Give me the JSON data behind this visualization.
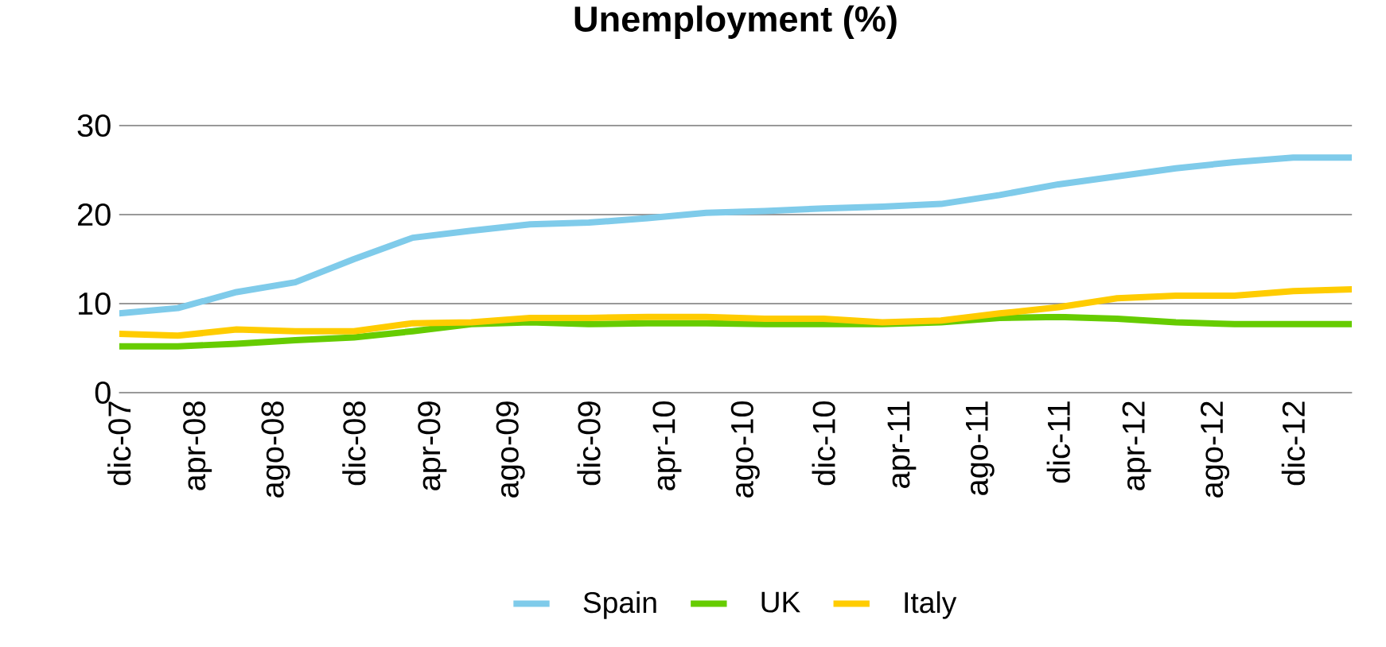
{
  "chart_data": {
    "type": "line",
    "title": "Unemployment (%)",
    "x": [
      "2007-12",
      "2008-03",
      "2008-06",
      "2008-09",
      "2008-12",
      "2009-03",
      "2009-06",
      "2009-09",
      "2009-12",
      "2010-03",
      "2010-06",
      "2010-09",
      "2010-12",
      "2011-03",
      "2011-06",
      "2011-09",
      "2011-12",
      "2012-03",
      "2012-06",
      "2012-09",
      "2012-12",
      "2013-03"
    ],
    "series": [
      {
        "name": "Spain",
        "color": "#7fcbea",
        "values": [
          8.9,
          9.5,
          11.3,
          12.4,
          15.0,
          17.4,
          18.2,
          18.9,
          19.1,
          19.6,
          20.2,
          20.4,
          20.7,
          20.9,
          21.2,
          22.2,
          23.4,
          24.3,
          25.2,
          25.9,
          26.4,
          26.4
        ]
      },
      {
        "name": "UK",
        "color": "#66cc00",
        "values": [
          5.2,
          5.2,
          5.5,
          5.9,
          6.2,
          6.9,
          7.7,
          7.9,
          7.7,
          7.8,
          7.8,
          7.7,
          7.7,
          7.7,
          7.9,
          8.4,
          8.5,
          8.3,
          7.9,
          7.7,
          7.7,
          7.7
        ]
      },
      {
        "name": "Italy",
        "color": "#ffcc00",
        "values": [
          6.6,
          6.4,
          7.1,
          6.9,
          6.9,
          7.8,
          7.9,
          8.4,
          8.4,
          8.5,
          8.5,
          8.3,
          8.3,
          7.9,
          8.1,
          8.9,
          9.6,
          10.6,
          10.9,
          10.9,
          11.4,
          11.6
        ]
      }
    ],
    "xlim": [
      "2007-12",
      "2013-03"
    ],
    "xticks": [
      {
        "value": "2007-12",
        "label": "dic-07"
      },
      {
        "value": "2008-04",
        "label": "apr-08"
      },
      {
        "value": "2008-08",
        "label": "ago-08"
      },
      {
        "value": "2008-12",
        "label": "dic-08"
      },
      {
        "value": "2009-04",
        "label": "apr-09"
      },
      {
        "value": "2009-08",
        "label": "ago-09"
      },
      {
        "value": "2009-12",
        "label": "dic-09"
      },
      {
        "value": "2010-04",
        "label": "apr-10"
      },
      {
        "value": "2010-08",
        "label": "ago-10"
      },
      {
        "value": "2010-12",
        "label": "dic-10"
      },
      {
        "value": "2011-04",
        "label": "apr-11"
      },
      {
        "value": "2011-08",
        "label": "ago-11"
      },
      {
        "value": "2011-12",
        "label": "dic-11"
      },
      {
        "value": "2012-04",
        "label": "apr-12"
      },
      {
        "value": "2012-08",
        "label": "ago-12"
      },
      {
        "value": "2012-12",
        "label": "dic-12"
      }
    ],
    "ylim": [
      0,
      30
    ],
    "yticks": [
      0,
      10,
      20,
      30
    ],
    "grid": "y",
    "legend": "bottom",
    "marker": "none",
    "line_style": "solid"
  }
}
